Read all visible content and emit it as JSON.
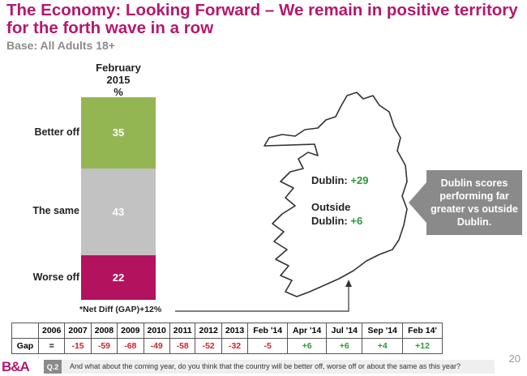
{
  "title": "The Economy: Looking Forward – We remain in positive territory for the forth wave in a row",
  "base": "Base: All Adults 18+",
  "column_header": [
    "February",
    "2015",
    "%"
  ],
  "chart_data": {
    "type": "bar",
    "stacked": true,
    "categories": [
      "Better off",
      "The same",
      "Worse off"
    ],
    "values": [
      35,
      43,
      22
    ],
    "colors": [
      "#93b653",
      "#c2c2c2",
      "#b3125f"
    ],
    "column": "February 2015",
    "unit": "%",
    "net_diff_label": "*Net Diff (GAP)+12%"
  },
  "map_labels": {
    "dublin_label": "Dublin:",
    "dublin_value": "+29",
    "outside_label_1": "Outside",
    "outside_label_2": "Dublin:",
    "outside_value": "+6"
  },
  "callout": "Dublin scores performing far greater vs outside Dublin.",
  "gap_table": {
    "row_label": "Gap",
    "columns": [
      "2006",
      "2007",
      "2008",
      "2009",
      "2010",
      "2011",
      "2012",
      "2013",
      "Feb '14",
      "Apr '14",
      "Jul '14",
      "Sep '14",
      "Feb 14'"
    ],
    "values": [
      "=",
      "-15",
      "-59",
      "-68",
      "-49",
      "-58",
      "-52",
      "-32",
      "-5",
      "+6",
      "+6",
      "+4",
      "+12"
    ]
  },
  "footer": {
    "logo": "B&A",
    "question_number": "Q.2",
    "question_text": "And what about the coming year, do you think that the country will be better off, worse off or about the same as this year?",
    "page_number": "20"
  }
}
